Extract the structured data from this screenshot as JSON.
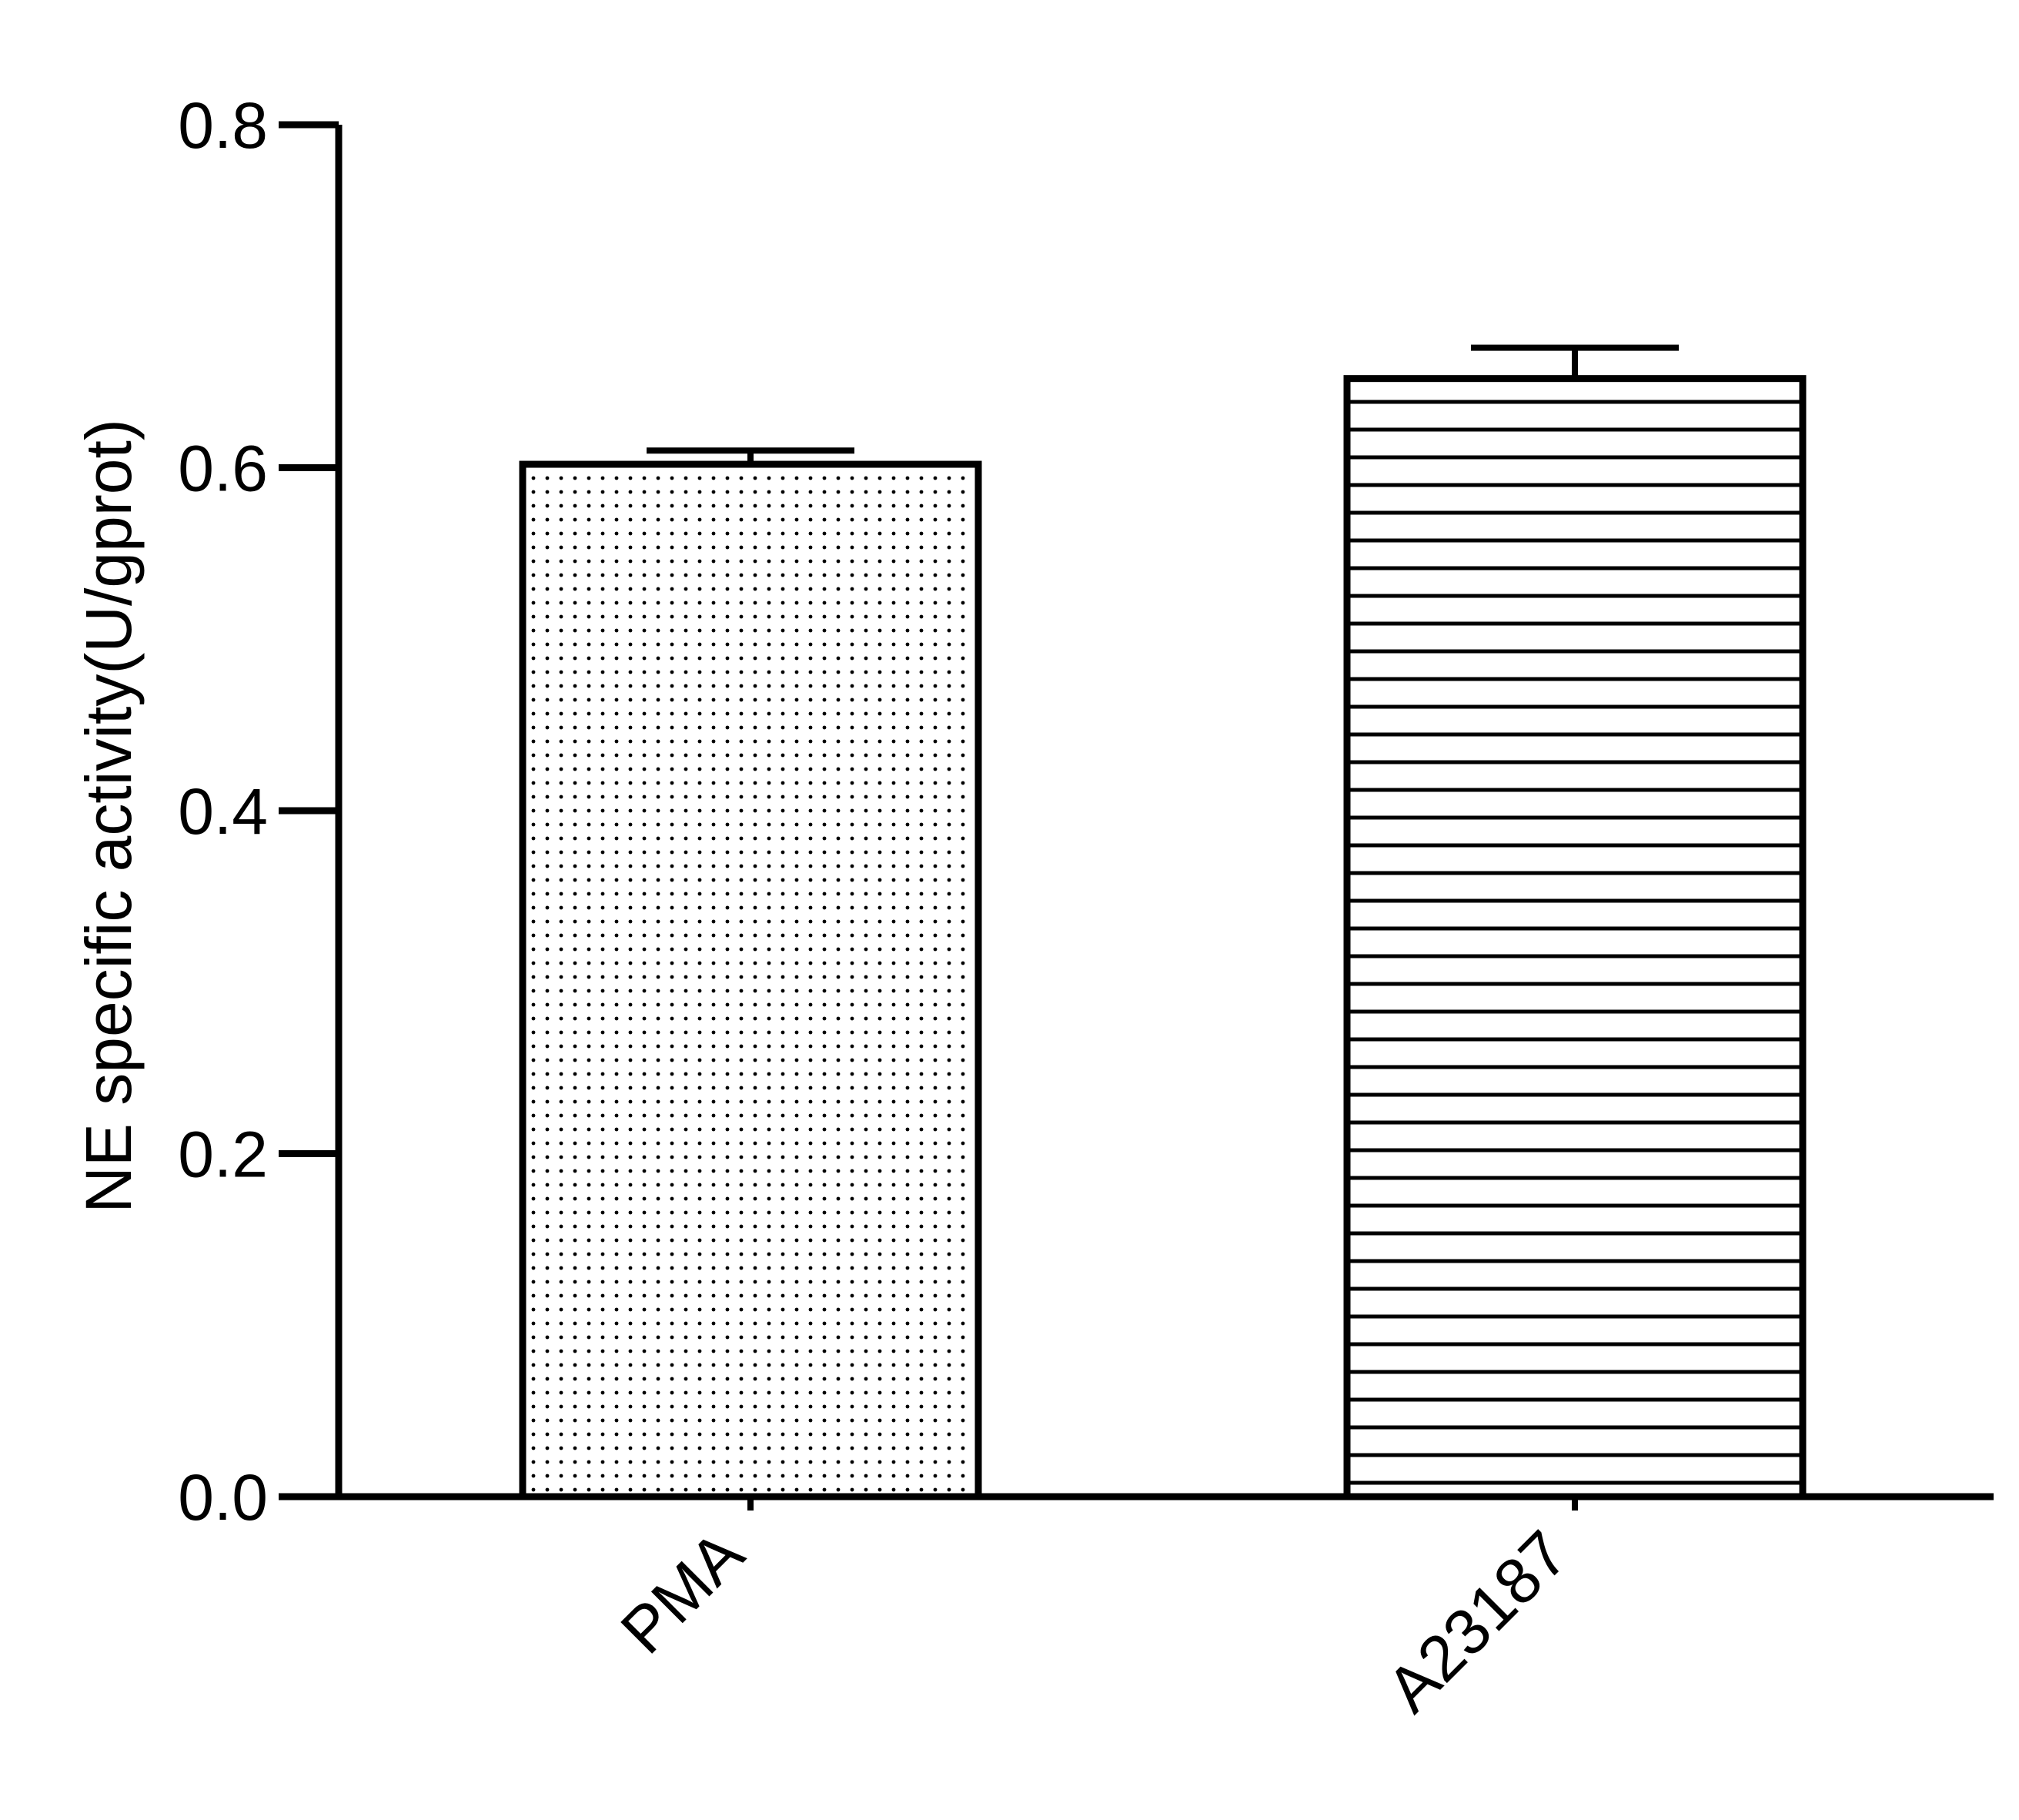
{
  "colors": {
    "ink": "#000000",
    "background": "#ffffff"
  },
  "chart_data": {
    "type": "bar",
    "title": "",
    "xlabel": "",
    "ylabel": "NE specific activity(U/gprot)",
    "categories": [
      "PMA",
      "A23187"
    ],
    "values": [
      0.602,
      0.652
    ],
    "error_bars": [
      0.008,
      0.018
    ],
    "fill_patterns": [
      "dots",
      "horizontal-lines"
    ],
    "ylim": [
      0,
      0.8
    ],
    "yticks": [
      "0.0",
      "0.2",
      "0.4",
      "0.6",
      "0.8"
    ],
    "grid": false,
    "legend": "none"
  }
}
